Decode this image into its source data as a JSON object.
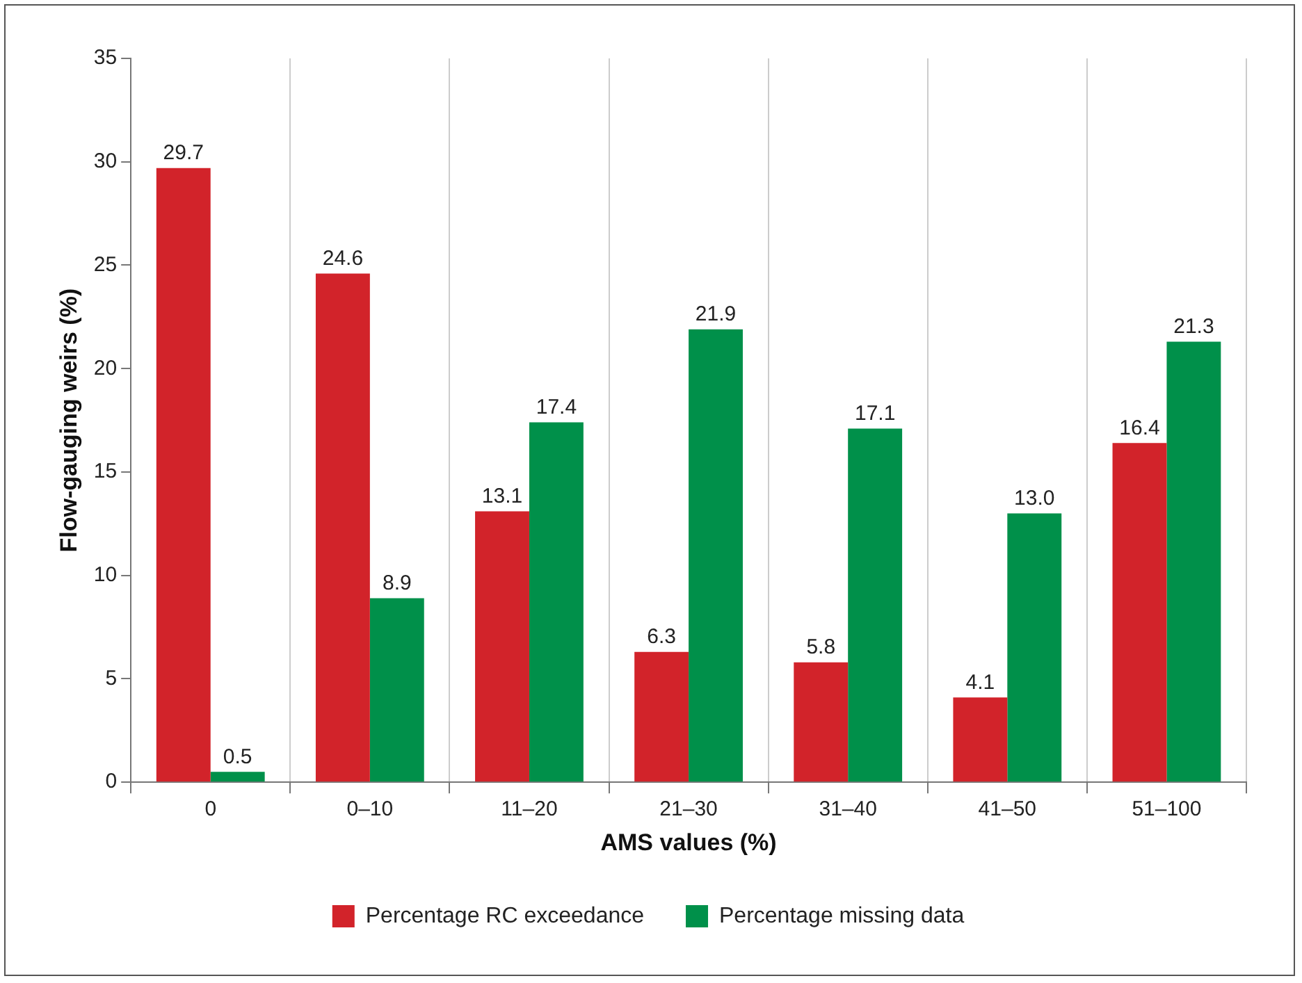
{
  "chart_data": {
    "type": "bar",
    "xlabel": "AMS values (%)",
    "ylabel": "Flow-gauging weirs (%)",
    "categories": [
      "0",
      "0–10",
      "11–20",
      "21–30",
      "31–40",
      "41–50",
      "51–100"
    ],
    "series": [
      {
        "name": "Percentage RC exceedance",
        "color": "#d2232a",
        "values": [
          29.7,
          24.6,
          13.1,
          6.3,
          5.8,
          4.1,
          16.4
        ],
        "value_labels": [
          "29.7",
          "24.6",
          "13.1",
          "6.3",
          "5.8",
          "4.1",
          "16.4"
        ]
      },
      {
        "name": "Percentage missing data",
        "color": "#00904a",
        "values": [
          0.5,
          8.9,
          17.4,
          21.9,
          17.1,
          13.0,
          21.3
        ],
        "value_labels": [
          "0.5",
          "8.9",
          "17.4",
          "21.9",
          "17.1",
          "13.0",
          "21.3"
        ]
      }
    ],
    "ylim": [
      0,
      35
    ],
    "yticks": [
      0,
      5,
      10,
      15,
      20,
      25,
      30,
      35
    ],
    "grid": "x",
    "legend": "bottom"
  }
}
